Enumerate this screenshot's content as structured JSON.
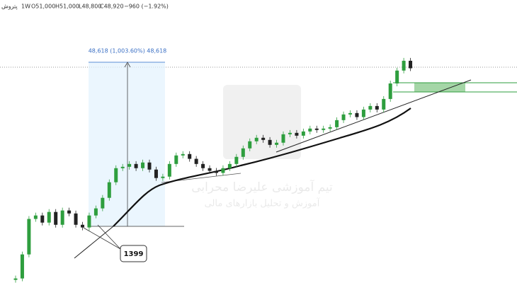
{
  "header": {
    "symbol": "پتروش",
    "interval": "1W",
    "open": "O51,000",
    "high": "H51,000",
    "low": "L48,800",
    "close": "C48,920",
    "change": "−960 (−1.92%)"
  },
  "watermark": {
    "line1": "تیم آموزشی علیرضا محرابی",
    "line2": "آموزش و تحلیل بازارهای مالی"
  },
  "chart_data": {
    "type": "candlestick",
    "log_scale": true,
    "ylim": [
      1900,
      133000
    ],
    "up_color": "#2e9e3e",
    "down_color": "#222222",
    "series": [
      {
        "values": [
          2250,
          3200,
          5380,
          5660,
          5100,
          5960,
          4940,
          6090,
          5830,
          4940,
          4750,
          5660,
          6280,
          7330,
          9210,
          11320,
          11550,
          12040,
          11320,
          12300,
          11090,
          9800,
          10000,
          12040,
          13640,
          13920,
          12980,
          12040,
          11320,
          10890,
          10560,
          11320,
          12040,
          13360,
          15130,
          16780,
          17670,
          17120,
          15930,
          16440,
          18600,
          18990,
          18220,
          19380,
          20220,
          19810,
          20220,
          20630,
          22880,
          24870,
          25380,
          23930,
          26720,
          28140,
          26720,
          31200,
          39160,
          47300,
          54600,
          48920
        ]
      }
    ],
    "measure_label": "48,618 (1,003.60%) 48,618",
    "annotation": "1399"
  }
}
